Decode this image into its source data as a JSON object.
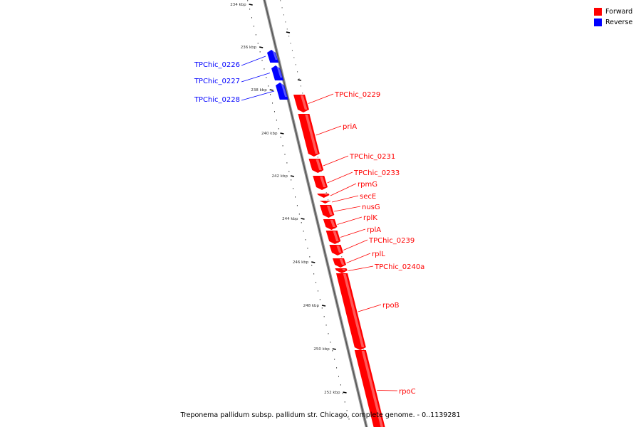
{
  "legend": {
    "forward_label": "Forward",
    "reverse_label": "Reverse",
    "forward_color": "#ff0000",
    "reverse_color": "#0000ff"
  },
  "caption": "Treponema pallidum subsp. pallidum str. Chicago, complete genome. - 0..1139281",
  "scale_labels": [
    "234 kbp",
    "236 kbp",
    "238 kbp",
    "240 kbp",
    "242 kbp",
    "244 kbp",
    "246 kbp",
    "248 kbp",
    "250 kbp",
    "252 kbp"
  ],
  "reverse_genes": [
    "TPChic_0226",
    "TPChic_0227",
    "TPChic_0228"
  ],
  "forward_genes": [
    "TPChic_0229",
    "priA",
    "TPChic_0231",
    "TPChic_0233",
    "rpmG",
    "secE",
    "nusG",
    "rplK",
    "rplA",
    "TPChic_0239",
    "rplL",
    "TPChic_0240a",
    "rpoB",
    "rpoC"
  ]
}
